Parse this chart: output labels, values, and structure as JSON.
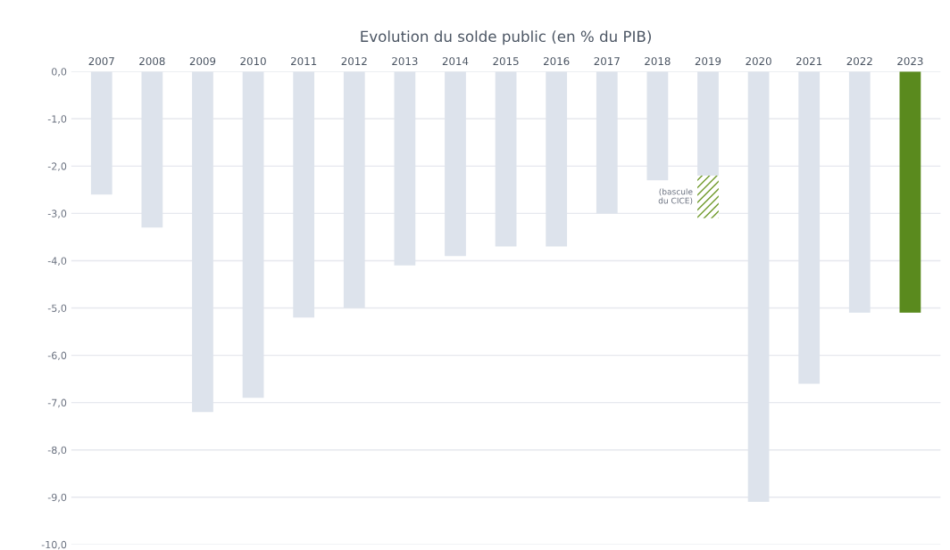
{
  "chart_data": {
    "type": "bar",
    "title": "Evolution du solde public (en % du PIB)",
    "categories": [
      "2007",
      "2008",
      "2009",
      "2010",
      "2011",
      "2012",
      "2013",
      "2014",
      "2015",
      "2016",
      "2017",
      "2018",
      "2019",
      "2020",
      "2021",
      "2022",
      "2023"
    ],
    "stacked": true,
    "series": [
      {
        "colors": [
          "#dde3ec",
          "#dde3ec",
          "#dde3ec",
          "#dde3ec",
          "#dde3ec",
          "#dde3ec",
          "#dde3ec",
          "#dde3ec",
          "#dde3ec",
          "#dde3ec",
          "#dde3ec",
          "#dde3ec",
          "#dde3ec",
          "#dde3ec",
          "#dde3ec",
          "#dde3ec",
          "#5a8a1e"
        ],
        "values": [
          -2.6,
          -3.3,
          -7.2,
          -6.9,
          -5.2,
          -5.0,
          -4.1,
          -3.9,
          -3.7,
          -3.7,
          -3.0,
          -2.3,
          -2.2,
          -9.1,
          -6.6,
          -5.1,
          -5.1
        ]
      },
      {
        "color": "#6f9a2a",
        "values": [
          null,
          null,
          null,
          null,
          null,
          null,
          null,
          null,
          null,
          null,
          null,
          null,
          -0.9,
          null,
          null,
          null,
          null
        ]
      }
    ],
    "ylim": [
      -10,
      0
    ],
    "yticks": [
      {
        "value": 0,
        "label": "0,0"
      },
      {
        "value": -1,
        "label": "-1,0"
      },
      {
        "value": -2,
        "label": "-2,0"
      },
      {
        "value": -3,
        "label": "-3,0"
      },
      {
        "value": -4,
        "label": "-4,0"
      },
      {
        "value": -5,
        "label": "-5,0"
      },
      {
        "value": -6,
        "label": "-6,0"
      },
      {
        "value": -7,
        "label": "-7,0"
      },
      {
        "value": -8,
        "label": "-8,0"
      },
      {
        "value": -9,
        "label": "-9,0"
      },
      {
        "value": -10,
        "label": "-10,0"
      }
    ],
    "grid": "y",
    "annotations": [
      "(bascule\ndu CICE)"
    ]
  }
}
